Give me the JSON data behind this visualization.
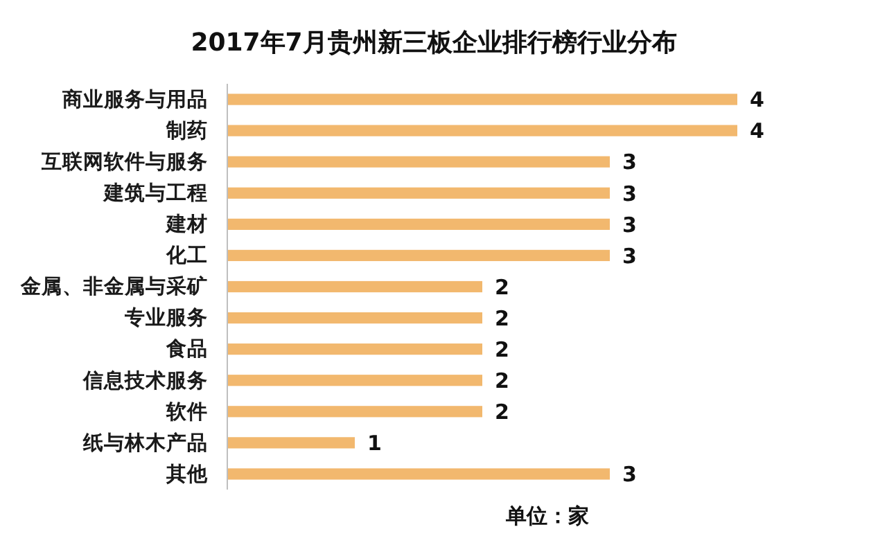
{
  "chart_data": {
    "type": "bar",
    "orientation": "horizontal",
    "title": "2017年7月贵州新三板企业排行榜行业分布",
    "categories": [
      "商业服务与用品",
      "制药",
      "互联网软件与服务",
      "建筑与工程",
      "建材",
      "化工",
      "金属、非金属与采矿",
      "专业服务",
      "食品",
      "信息技术服务",
      "软件",
      "纸与林木产品",
      "其他"
    ],
    "values": [
      4,
      4,
      3,
      3,
      3,
      3,
      2,
      2,
      2,
      2,
      2,
      1,
      3
    ],
    "color": "#f2b86e",
    "data_labels": true,
    "annotations": [
      "单位：家"
    ]
  }
}
